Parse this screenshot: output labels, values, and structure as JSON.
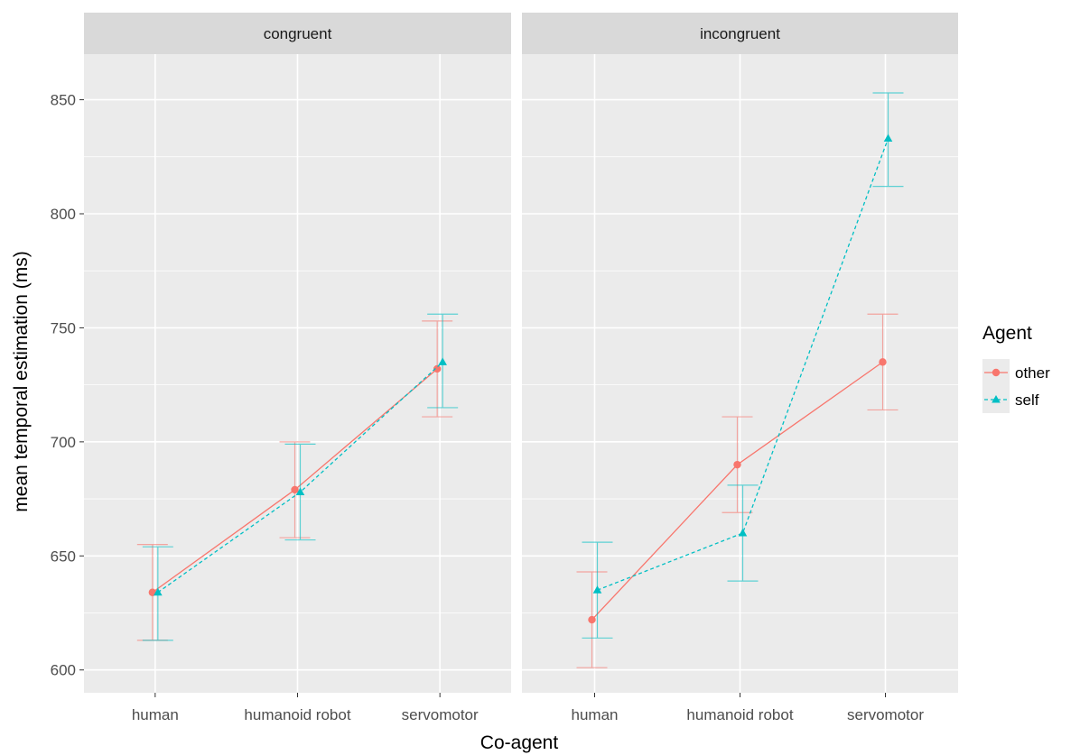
{
  "chart_data": {
    "type": "line",
    "xlabel": "Co-agent",
    "ylabel": "mean temporal estimation (ms)",
    "ylim": [
      590,
      870
    ],
    "yticks": [
      600,
      650,
      700,
      750,
      800,
      850
    ],
    "categories": [
      "human",
      "humanoid robot",
      "servomotor"
    ],
    "grid": true,
    "legend": {
      "title": "Agent",
      "placement": "right",
      "entries": [
        "other",
        "self"
      ]
    },
    "colors": {
      "other": "#F8766D",
      "self": "#00BFC4"
    },
    "panels": [
      {
        "label": "congruent",
        "series": [
          {
            "name": "other",
            "values": [
              634,
              679,
              732
            ],
            "lower": [
              613,
              658,
              711
            ],
            "upper": [
              655,
              700,
              753
            ]
          },
          {
            "name": "self",
            "values": [
              634,
              678,
              735
            ],
            "lower": [
              613,
              657,
              715
            ],
            "upper": [
              654,
              699,
              756
            ]
          }
        ]
      },
      {
        "label": "incongruent",
        "series": [
          {
            "name": "other",
            "values": [
              622,
              690,
              735
            ],
            "lower": [
              601,
              669,
              714
            ],
            "upper": [
              643,
              711,
              756
            ]
          },
          {
            "name": "self",
            "values": [
              635,
              660,
              833
            ],
            "lower": [
              614,
              639,
              812
            ],
            "upper": [
              656,
              681,
              853
            ]
          }
        ]
      }
    ]
  }
}
